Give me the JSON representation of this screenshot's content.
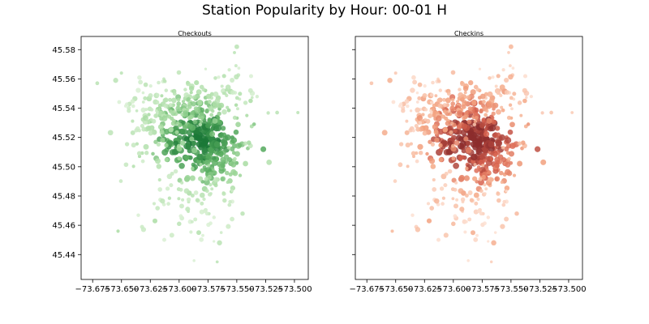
{
  "figure": {
    "title": "Station Popularity by Hour: 00-01 H"
  },
  "chart_data": [
    {
      "type": "scatter",
      "title": "Checkouts",
      "xlabel": "",
      "ylabel": "",
      "xlim": [
        -73.685,
        -73.488
      ],
      "ylim": [
        45.423,
        45.589
      ],
      "xticks": [
        -73.675,
        -73.65,
        -73.625,
        -73.6,
        -73.575,
        -73.55,
        -73.525,
        -73.5
      ],
      "xtick_labels": [
        "−73.675",
        "−73.650",
        "−73.625",
        "−73.600",
        "−73.575",
        "−73.550",
        "−73.525",
        "−73.500"
      ],
      "yticks": [
        45.44,
        45.46,
        45.48,
        45.5,
        45.52,
        45.54,
        45.56,
        45.58
      ],
      "ytick_labels": [
        "45.44",
        "45.46",
        "45.48",
        "45.50",
        "45.52",
        "45.54",
        "45.56",
        "45.58"
      ],
      "grid": false,
      "colormap": [
        "#d9f0d3",
        "#a6dba0",
        "#5aae61",
        "#1b7837"
      ],
      "note_points": "point count sampled from the map; each point = [longitude, latitude, relative popularity 0-1]"
    },
    {
      "type": "scatter",
      "title": "Checkins",
      "xlabel": "",
      "ylabel": "",
      "xlim": [
        -73.685,
        -73.488
      ],
      "ylim": [
        45.423,
        45.589
      ],
      "xticks": [
        -73.675,
        -73.65,
        -73.625,
        -73.6,
        -73.575,
        -73.55,
        -73.525,
        -73.5
      ],
      "xtick_labels": [
        "−73.675",
        "−73.650",
        "−73.625",
        "−73.600",
        "−73.575",
        "−73.550",
        "−73.525",
        "−73.500"
      ],
      "yticks": [
        45.44,
        45.46,
        45.48,
        45.5,
        45.52,
        45.54,
        45.56,
        45.58
      ],
      "ytick_labels": [],
      "grid": false,
      "colormap": [
        "#fde0d2",
        "#f4a582",
        "#d6604d",
        "#8c2d2d"
      ]
    }
  ]
}
